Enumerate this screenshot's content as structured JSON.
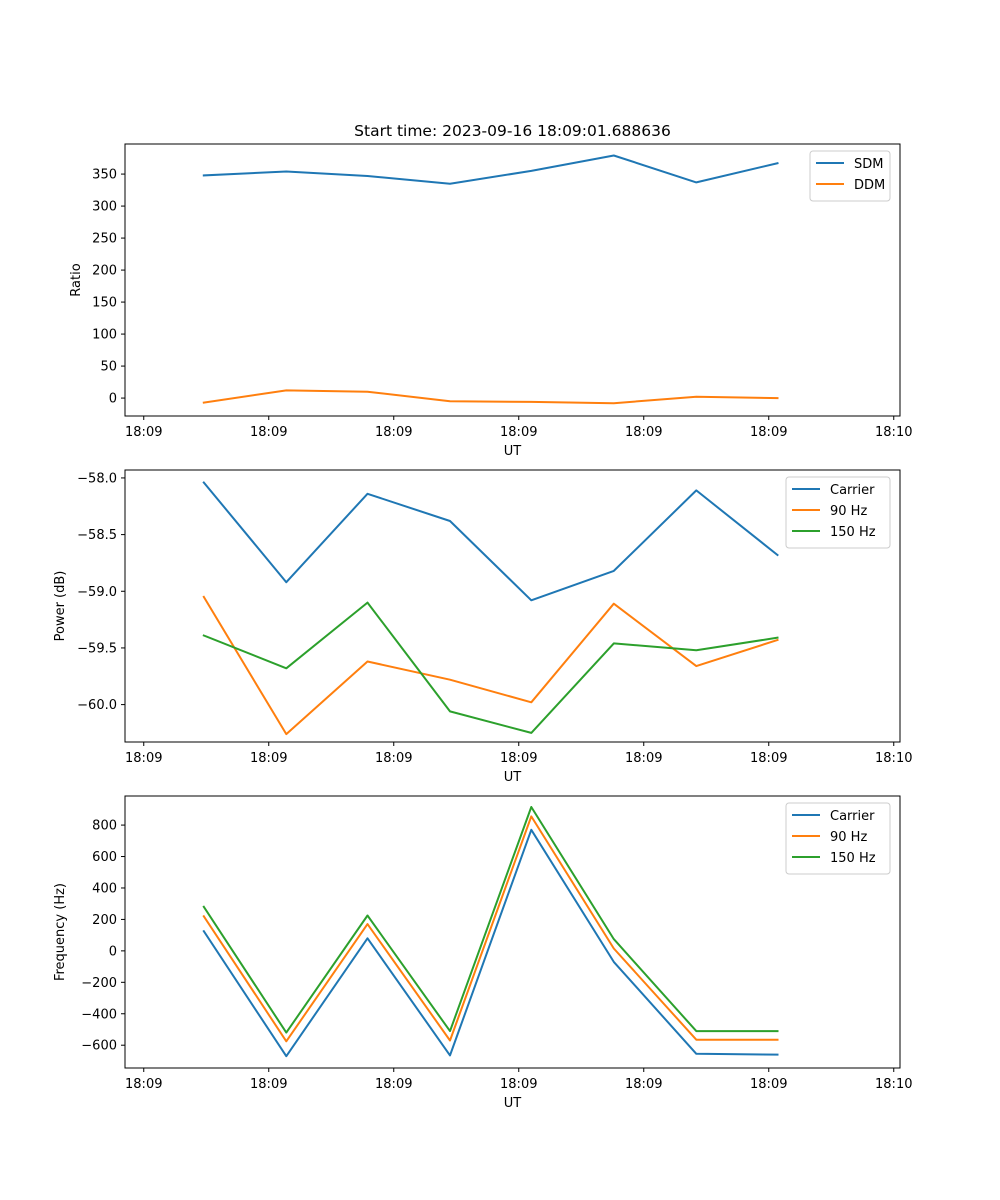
{
  "chart_data": [
    {
      "type": "line",
      "title": "Start time: 2023-09-16 18:09:01.688636",
      "xlabel": "UT",
      "ylabel": "Ratio",
      "x_tick_labels": [
        "18:09",
        "18:09",
        "18:09",
        "18:09",
        "18:09",
        "18:09",
        "18:10"
      ],
      "xlim": [
        -0.15,
        6.05
      ],
      "x": [
        0.48,
        1.14,
        1.79,
        2.45,
        3.1,
        3.76,
        4.42,
        5.07
      ],
      "yticks": [
        0,
        50,
        100,
        150,
        200,
        250,
        300,
        350
      ],
      "ylim": [
        -28,
        397
      ],
      "legend": "top-right",
      "series": [
        {
          "name": "SDM",
          "color": "#1f77b4",
          "values": [
            348,
            354,
            347,
            335,
            355,
            379,
            337,
            367
          ]
        },
        {
          "name": "DDM",
          "color": "#ff7f0e",
          "values": [
            -7,
            12,
            10,
            -5,
            -6,
            -8,
            2,
            0
          ]
        }
      ]
    },
    {
      "type": "line",
      "title": "",
      "xlabel": "UT",
      "ylabel": "Power (dB)",
      "x_tick_labels": [
        "18:09",
        "18:09",
        "18:09",
        "18:09",
        "18:09",
        "18:09",
        "18:10"
      ],
      "xlim": [
        -0.15,
        6.05
      ],
      "x": [
        0.48,
        1.14,
        1.79,
        2.45,
        3.1,
        3.76,
        4.42,
        5.07
      ],
      "yticks": [
        -60.0,
        -59.5,
        -59.0,
        -58.5,
        -58.0
      ],
      "ytick_labels": [
        "−60.0",
        "−59.5",
        "−59.0",
        "−58.5",
        "−58.0"
      ],
      "ylim": [
        -60.33,
        -57.93
      ],
      "legend": "top-right",
      "series": [
        {
          "name": "Carrier",
          "color": "#1f77b4",
          "values": [
            -58.04,
            -58.92,
            -58.14,
            -58.38,
            -59.08,
            -58.82,
            -58.11,
            -58.68
          ]
        },
        {
          "name": "90 Hz",
          "color": "#ff7f0e",
          "values": [
            -59.05,
            -60.26,
            -59.62,
            -59.78,
            -59.98,
            -59.11,
            -59.66,
            -59.43
          ]
        },
        {
          "name": "150 Hz",
          "color": "#2ca02c",
          "values": [
            -59.39,
            -59.68,
            -59.1,
            -60.06,
            -60.25,
            -59.46,
            -59.52,
            -59.41
          ]
        }
      ]
    },
    {
      "type": "line",
      "title": "",
      "xlabel": "UT",
      "ylabel": "Frequency (Hz)",
      "x_tick_labels": [
        "18:09",
        "18:09",
        "18:09",
        "18:09",
        "18:09",
        "18:09",
        "18:10"
      ],
      "xlim": [
        -0.15,
        6.05
      ],
      "x": [
        0.48,
        1.14,
        1.79,
        2.45,
        3.1,
        3.76,
        4.42,
        5.07
      ],
      "yticks": [
        -600,
        -400,
        -200,
        0,
        200,
        400,
        600,
        800
      ],
      "ytick_labels": [
        "−600",
        "−400",
        "−200",
        "0",
        "200",
        "400",
        "600",
        "800"
      ],
      "ylim": [
        -745,
        985
      ],
      "legend": "top-right",
      "series": [
        {
          "name": "Carrier",
          "color": "#1f77b4",
          "values": [
            125,
            -670,
            80,
            -665,
            770,
            -70,
            -655,
            -660
          ]
        },
        {
          "name": "90 Hz",
          "color": "#ff7f0e",
          "values": [
            220,
            -575,
            170,
            -570,
            855,
            15,
            -565,
            -565
          ]
        },
        {
          "name": "150 Hz",
          "color": "#2ca02c",
          "values": [
            280,
            -520,
            225,
            -510,
            915,
            75,
            -510,
            -510
          ]
        }
      ]
    }
  ]
}
